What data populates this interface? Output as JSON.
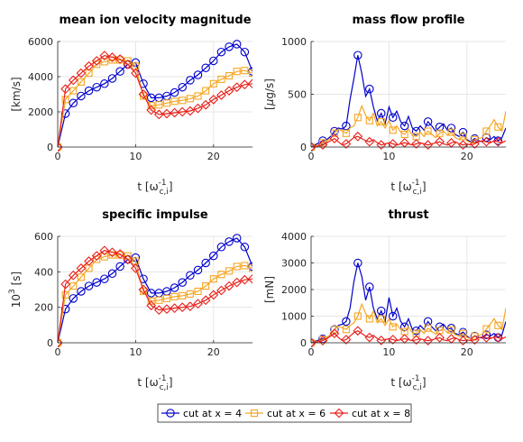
{
  "colors": {
    "cut4": "#0000cc",
    "cut6": "#f5a623",
    "cut8": "#e8201a"
  },
  "legend": {
    "placement": "bottom-center",
    "entries": [
      "cut at x = 4",
      "cut at x = 6",
      "cut at x = 8"
    ]
  },
  "chart_data": [
    {
      "type": "line",
      "title": "mean ion velocity magnitude",
      "ylabel_text": "[km/s]",
      "xlabel_main": "t [ω",
      "xlabel_sup": "-1",
      "xlabel_sub": "c,i",
      "xlabel_close": "]",
      "xlim": [
        0,
        25
      ],
      "ylim": [
        0,
        6000
      ],
      "xticks": [
        0,
        10,
        20
      ],
      "yticks": [
        0,
        2000,
        4000,
        6000
      ],
      "grid": true,
      "series": [
        {
          "name": "cut at x = 4",
          "marker": "circle",
          "x": [
            0,
            1,
            2,
            3,
            4,
            5,
            6,
            7,
            8,
            9,
            10,
            11,
            12,
            13,
            14,
            15,
            16,
            17,
            18,
            19,
            20,
            21,
            22,
            23,
            24,
            25
          ],
          "y": [
            0,
            1900,
            2500,
            2900,
            3200,
            3400,
            3600,
            3900,
            4300,
            4700,
            4800,
            3600,
            2800,
            2800,
            2900,
            3100,
            3400,
            3800,
            4100,
            4500,
            4900,
            5400,
            5700,
            5850,
            5400,
            4300
          ]
        },
        {
          "name": "cut at x = 6",
          "marker": "square",
          "x": [
            0,
            1,
            2,
            3,
            4,
            5,
            6,
            7,
            8,
            9,
            10,
            11,
            12,
            13,
            14,
            15,
            16,
            17,
            18,
            19,
            20,
            21,
            22,
            23,
            24,
            25
          ],
          "y": [
            0,
            2700,
            3200,
            3700,
            4200,
            4700,
            4850,
            4950,
            4950,
            4900,
            4600,
            2900,
            2350,
            2400,
            2500,
            2600,
            2650,
            2750,
            2900,
            3200,
            3600,
            3850,
            4050,
            4300,
            4350,
            4200
          ]
        },
        {
          "name": "cut at x = 8",
          "marker": "diamond",
          "x": [
            0,
            1,
            2,
            3,
            4,
            5,
            6,
            7,
            8,
            9,
            10,
            11,
            12,
            13,
            14,
            15,
            16,
            17,
            18,
            19,
            20,
            21,
            22,
            23,
            24,
            25
          ],
          "y": [
            0,
            3300,
            3800,
            4200,
            4600,
            4900,
            5200,
            5100,
            5000,
            4700,
            4200,
            3000,
            2100,
            1850,
            1900,
            1950,
            2000,
            2050,
            2200,
            2400,
            2700,
            2950,
            3200,
            3400,
            3550,
            3600
          ]
        }
      ]
    },
    {
      "type": "line",
      "title": "mass flow profile",
      "ylabel_pre": "[",
      "ylabel_greek": "μ",
      "ylabel_post": "g/s]",
      "xlabel_main": "t [ω",
      "xlabel_sup": "-1",
      "xlabel_sub": "c,i",
      "xlabel_close": "]",
      "xlim": [
        0,
        25
      ],
      "ylim": [
        0,
        1000
      ],
      "xticks": [
        0,
        10,
        20
      ],
      "yticks": [
        0,
        500,
        1000
      ],
      "grid": true,
      "series": [
        {
          "name": "cut at x = 4",
          "marker": "circle",
          "x": [
            0,
            0.5,
            1,
            1.5,
            2,
            2.5,
            3,
            3.5,
            4,
            4.5,
            5,
            5.5,
            6,
            6.5,
            7,
            7.5,
            8,
            8.5,
            9,
            9.5,
            10,
            10.5,
            11,
            11.5,
            12,
            12.5,
            13,
            13.5,
            14,
            14.5,
            15,
            15.5,
            16,
            16.5,
            17,
            17.5,
            18,
            18.5,
            19,
            19.5,
            20,
            20.5,
            21,
            21.5,
            22,
            22.5,
            23,
            23.5,
            24,
            24.5,
            25
          ],
          "y": [
            0,
            20,
            40,
            60,
            70,
            100,
            150,
            180,
            170,
            200,
            450,
            650,
            870,
            700,
            480,
            550,
            380,
            250,
            320,
            220,
            380,
            280,
            340,
            240,
            200,
            290,
            180,
            150,
            200,
            160,
            240,
            200,
            150,
            190,
            220,
            160,
            180,
            120,
            100,
            140,
            70,
            50,
            80,
            60,
            50,
            90,
            70,
            100,
            60,
            90,
            180
          ],
          "marker_every": 3
        },
        {
          "name": "cut at x = 6",
          "marker": "square",
          "x": [
            0,
            0.5,
            1,
            1.5,
            2,
            2.5,
            3,
            3.5,
            4,
            4.5,
            5,
            5.5,
            6,
            6.5,
            7,
            7.5,
            8,
            8.5,
            9,
            9.5,
            10,
            10.5,
            11,
            11.5,
            12,
            12.5,
            13,
            13.5,
            14,
            14.5,
            15,
            15.5,
            16,
            16.5,
            17,
            17.5,
            18,
            18.5,
            19,
            19.5,
            20,
            20.5,
            21,
            21.5,
            22,
            22.5,
            23,
            23.5,
            24,
            24.5,
            25
          ],
          "y": [
            0,
            10,
            20,
            40,
            60,
            80,
            130,
            170,
            150,
            130,
            180,
            200,
            280,
            390,
            300,
            250,
            320,
            200,
            240,
            180,
            250,
            160,
            200,
            140,
            120,
            170,
            110,
            100,
            140,
            100,
            150,
            120,
            90,
            130,
            150,
            110,
            140,
            90,
            70,
            100,
            60,
            40,
            70,
            80,
            90,
            150,
            200,
            260,
            190,
            150,
            340
          ],
          "marker_every": 3
        },
        {
          "name": "cut at x = 8",
          "marker": "diamond",
          "x": [
            0,
            0.5,
            1,
            1.5,
            2,
            2.5,
            3,
            3.5,
            4,
            4.5,
            5,
            5.5,
            6,
            6.5,
            7,
            7.5,
            8,
            8.5,
            9,
            9.5,
            10,
            10.5,
            11,
            11.5,
            12,
            12.5,
            13,
            13.5,
            14,
            14.5,
            15,
            15.5,
            16,
            16.5,
            17,
            17.5,
            18,
            18.5,
            19,
            19.5,
            20,
            20.5,
            21,
            21.5,
            22,
            22.5,
            23,
            23.5,
            24,
            24.5,
            25
          ],
          "y": [
            0,
            5,
            10,
            20,
            40,
            60,
            80,
            50,
            20,
            30,
            60,
            90,
            100,
            80,
            60,
            50,
            70,
            40,
            20,
            30,
            40,
            30,
            20,
            30,
            40,
            30,
            20,
            30,
            40,
            30,
            20,
            30,
            40,
            50,
            30,
            20,
            40,
            50,
            30,
            20,
            30,
            20,
            30,
            50,
            60,
            50,
            40,
            60,
            50,
            40,
            60
          ],
          "marker_every": 3
        }
      ]
    },
    {
      "type": "line",
      "title": "specific impulse",
      "ylabel_base": "10",
      "ylabel_sup": "3",
      "ylabel_post": " [s]",
      "xlabel_main": "t [ω",
      "xlabel_sup": "-1",
      "xlabel_sub": "c,i",
      "xlabel_close": "]",
      "xlim": [
        0,
        25
      ],
      "ylim": [
        0,
        600
      ],
      "xticks": [
        0,
        10,
        20
      ],
      "yticks": [
        0,
        200,
        400,
        600
      ],
      "grid": true,
      "series": [
        {
          "name": "cut at x = 4",
          "marker": "circle",
          "x": [
            0,
            1,
            2,
            3,
            4,
            5,
            6,
            7,
            8,
            9,
            10,
            11,
            12,
            13,
            14,
            15,
            16,
            17,
            18,
            19,
            20,
            21,
            22,
            23,
            24,
            25
          ],
          "y": [
            0,
            190,
            250,
            290,
            320,
            340,
            360,
            390,
            430,
            470,
            480,
            360,
            280,
            280,
            290,
            310,
            340,
            380,
            410,
            450,
            490,
            540,
            570,
            590,
            540,
            430
          ]
        },
        {
          "name": "cut at x = 6",
          "marker": "square",
          "x": [
            0,
            1,
            2,
            3,
            4,
            5,
            6,
            7,
            8,
            9,
            10,
            11,
            12,
            13,
            14,
            15,
            16,
            17,
            18,
            19,
            20,
            21,
            22,
            23,
            24,
            25
          ],
          "y": [
            0,
            270,
            320,
            370,
            420,
            470,
            485,
            495,
            495,
            490,
            460,
            290,
            235,
            240,
            250,
            260,
            265,
            275,
            290,
            320,
            360,
            385,
            405,
            430,
            435,
            420
          ]
        },
        {
          "name": "cut at x = 8",
          "marker": "diamond",
          "x": [
            0,
            1,
            2,
            3,
            4,
            5,
            6,
            7,
            8,
            9,
            10,
            11,
            12,
            13,
            14,
            15,
            16,
            17,
            18,
            19,
            20,
            21,
            22,
            23,
            24,
            25
          ],
          "y": [
            0,
            330,
            380,
            420,
            460,
            490,
            520,
            510,
            500,
            470,
            420,
            300,
            210,
            185,
            190,
            195,
            200,
            205,
            220,
            240,
            270,
            295,
            320,
            340,
            355,
            360
          ]
        }
      ]
    },
    {
      "type": "line",
      "title": "thrust",
      "ylabel_text": "[mN]",
      "xlabel_main": "t [ω",
      "xlabel_sup": "-1",
      "xlabel_sub": "c,i",
      "xlabel_close": "]",
      "xlim": [
        0,
        25
      ],
      "ylim": [
        0,
        4000
      ],
      "xticks": [
        0,
        10,
        20
      ],
      "yticks": [
        0,
        1000,
        2000,
        3000,
        4000
      ],
      "grid": true,
      "series": [
        {
          "name": "cut at x = 4",
          "marker": "circle",
          "x": [
            0,
            0.5,
            1,
            1.5,
            2,
            2.5,
            3,
            3.5,
            4,
            4.5,
            5,
            5.5,
            6,
            6.5,
            7,
            7.5,
            8,
            8.5,
            9,
            9.5,
            10,
            10.5,
            11,
            11.5,
            12,
            12.5,
            13,
            13.5,
            14,
            14.5,
            15,
            15.5,
            16,
            16.5,
            17,
            17.5,
            18,
            18.5,
            19,
            19.5,
            20,
            20.5,
            21,
            21.5,
            22,
            22.5,
            23,
            23.5,
            24,
            24.5,
            25
          ],
          "y": [
            0,
            50,
            100,
            150,
            200,
            300,
            500,
            650,
            700,
            800,
            1300,
            2300,
            3000,
            2500,
            1600,
            2100,
            1300,
            900,
            1200,
            800,
            1700,
            1000,
            1300,
            800,
            600,
            900,
            500,
            450,
            650,
            500,
            800,
            600,
            450,
            600,
            700,
            500,
            550,
            350,
            300,
            400,
            250,
            150,
            250,
            200,
            180,
            300,
            250,
            350,
            200,
            300,
            800
          ],
          "marker_every": 3
        },
        {
          "name": "cut at x = 6",
          "marker": "square",
          "x": [
            0,
            0.5,
            1,
            1.5,
            2,
            2.5,
            3,
            3.5,
            4,
            4.5,
            5,
            5.5,
            6,
            6.5,
            7,
            7.5,
            8,
            8.5,
            9,
            9.5,
            10,
            10.5,
            11,
            11.5,
            12,
            12.5,
            13,
            13.5,
            14,
            14.5,
            15,
            15.5,
            16,
            16.5,
            17,
            17.5,
            18,
            18.5,
            19,
            19.5,
            20,
            20.5,
            21,
            21.5,
            22,
            22.5,
            23,
            23.5,
            24,
            24.5,
            25
          ],
          "y": [
            0,
            30,
            60,
            120,
            200,
            300,
            500,
            620,
            560,
            500,
            650,
            750,
            1000,
            1450,
            1100,
            900,
            1200,
            750,
            900,
            650,
            900,
            600,
            700,
            500,
            420,
            600,
            380,
            350,
            500,
            350,
            550,
            420,
            320,
            460,
            520,
            380,
            480,
            300,
            250,
            350,
            200,
            150,
            250,
            280,
            320,
            520,
            700,
            900,
            650,
            500,
            1300
          ],
          "marker_every": 3
        },
        {
          "name": "cut at x = 8",
          "marker": "diamond",
          "x": [
            0,
            0.5,
            1,
            1.5,
            2,
            2.5,
            3,
            3.5,
            4,
            4.5,
            5,
            5.5,
            6,
            6.5,
            7,
            7.5,
            8,
            8.5,
            9,
            9.5,
            10,
            10.5,
            11,
            11.5,
            12,
            12.5,
            13,
            13.5,
            14,
            14.5,
            15,
            15.5,
            16,
            16.5,
            17,
            17.5,
            18,
            18.5,
            19,
            19.5,
            20,
            20.5,
            21,
            21.5,
            22,
            22.5,
            23,
            23.5,
            24,
            24.5,
            25
          ],
          "y": [
            0,
            20,
            40,
            80,
            150,
            250,
            350,
            200,
            80,
            120,
            250,
            380,
            450,
            350,
            250,
            200,
            280,
            160,
            90,
            120,
            150,
            120,
            80,
            120,
            150,
            120,
            80,
            110,
            150,
            110,
            80,
            110,
            150,
            190,
            110,
            80,
            150,
            190,
            110,
            80,
            110,
            80,
            110,
            190,
            220,
            190,
            150,
            220,
            190,
            150,
            220
          ],
          "marker_every": 3
        }
      ]
    }
  ]
}
